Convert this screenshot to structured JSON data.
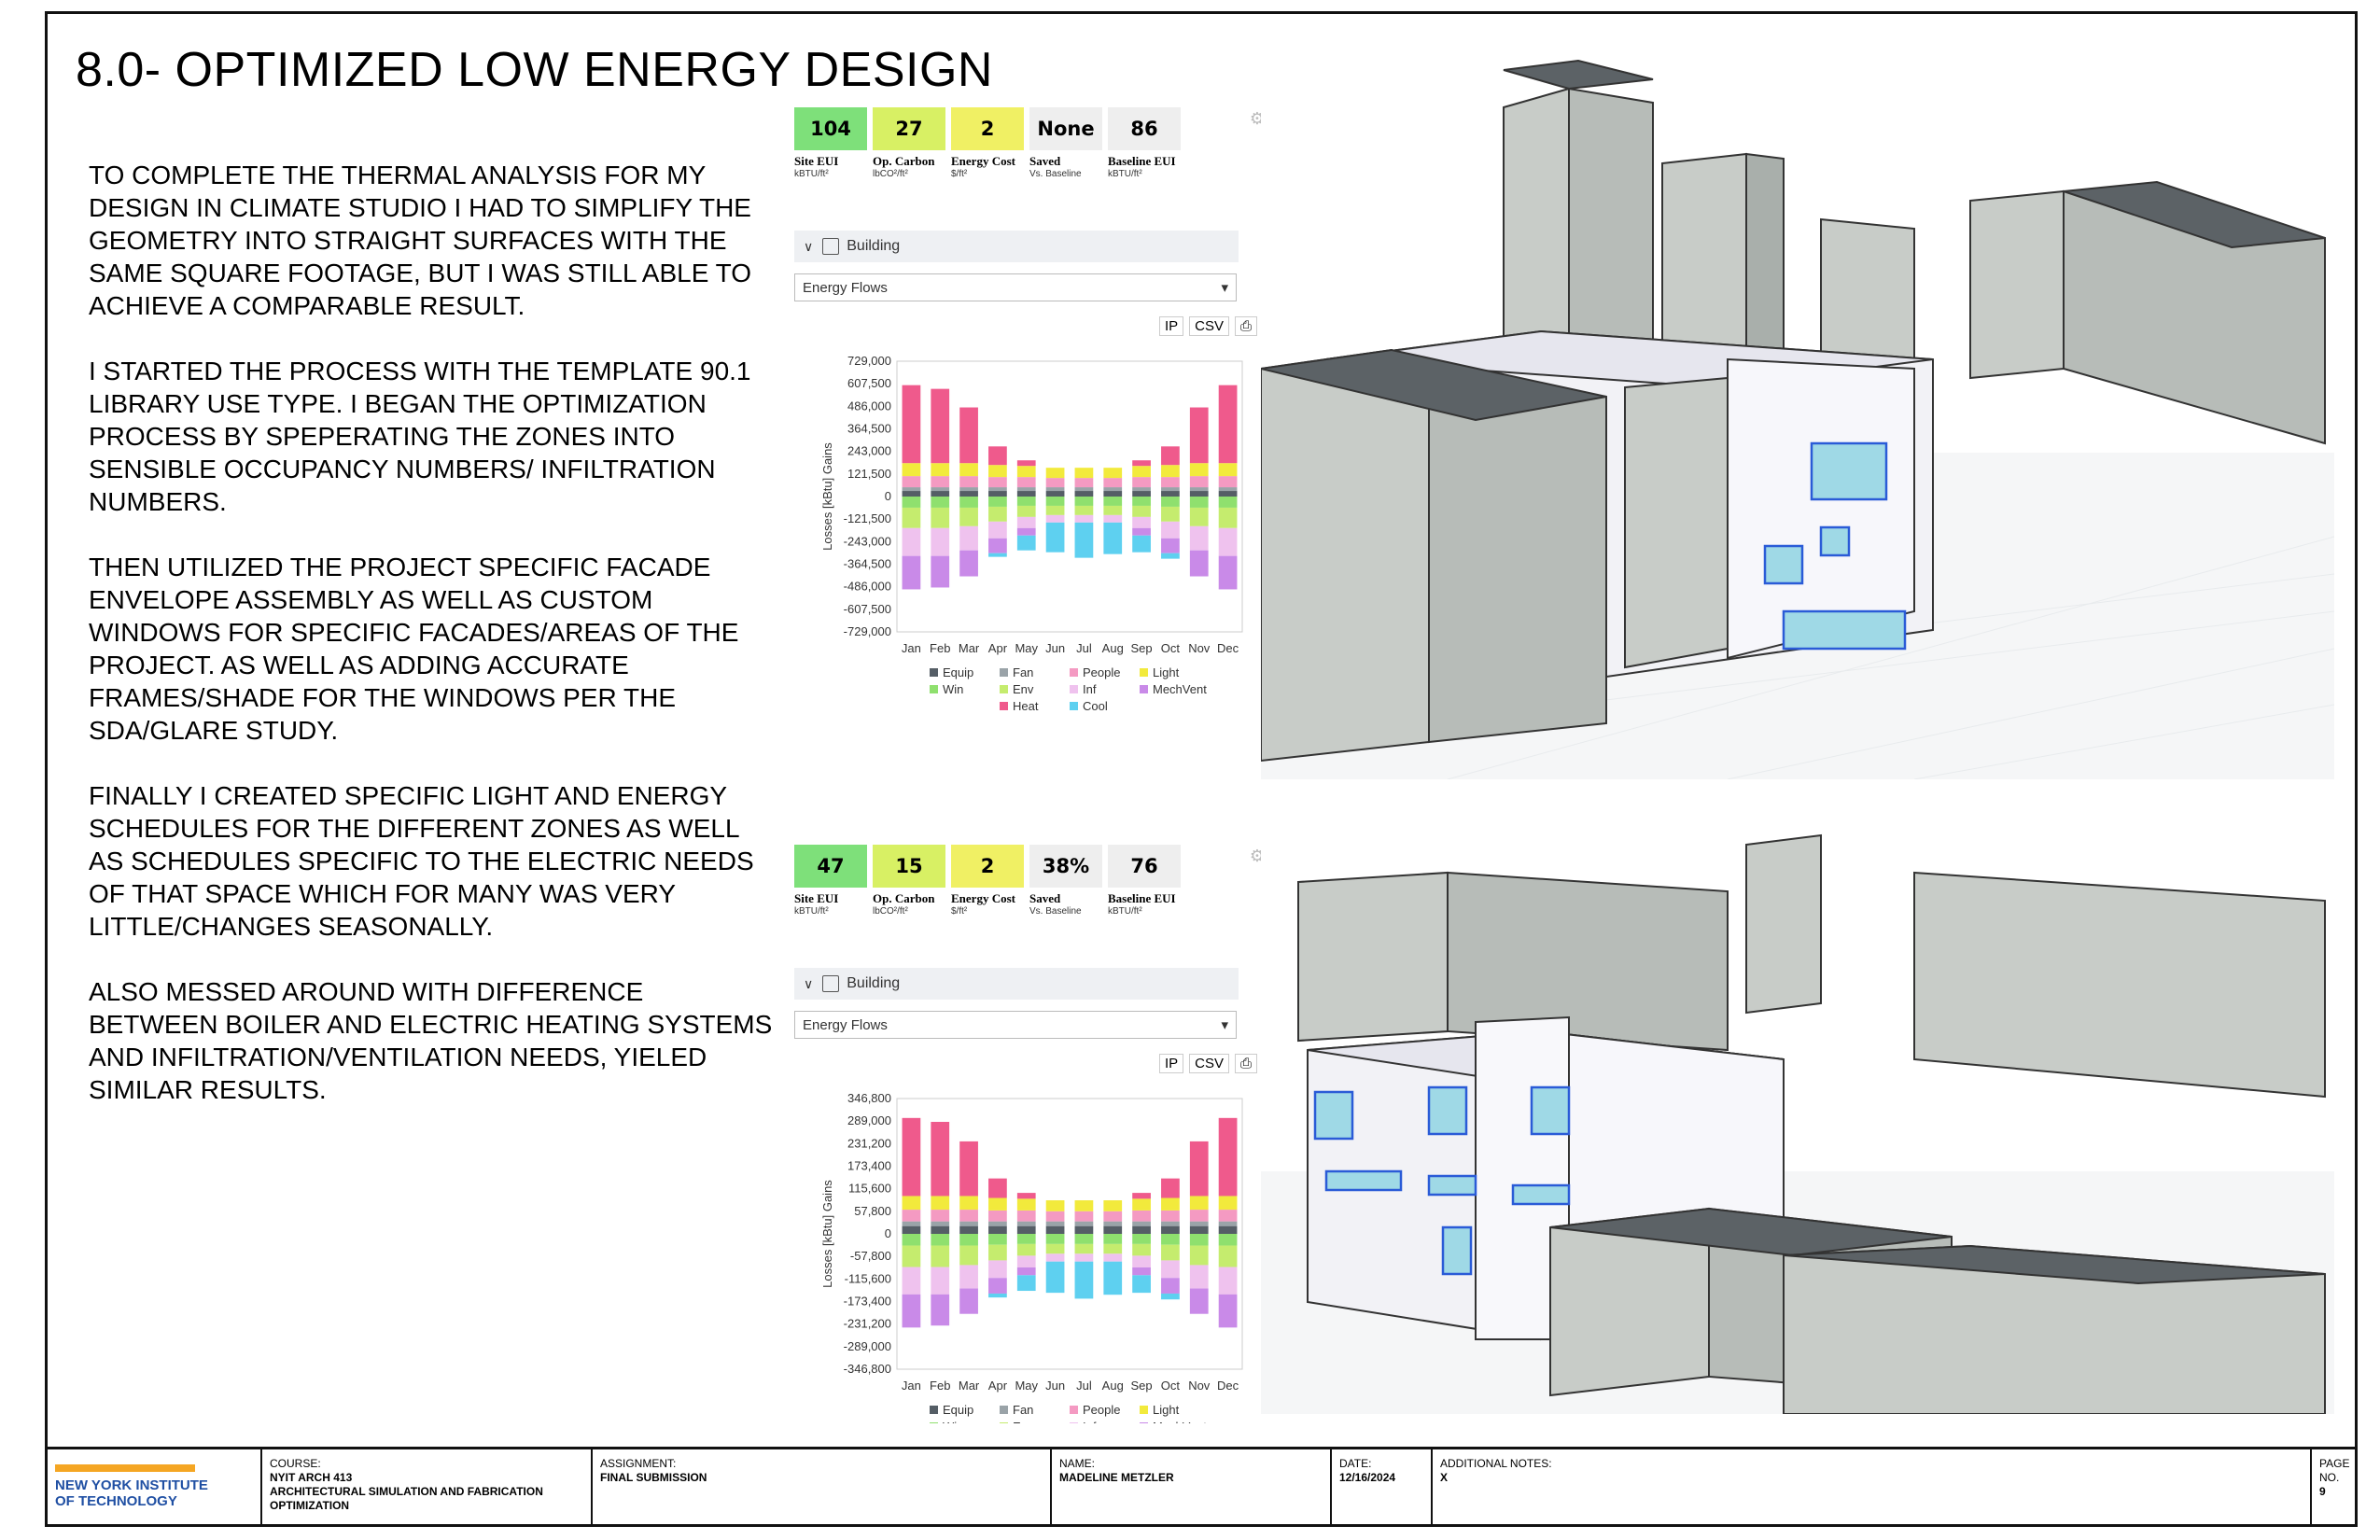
{
  "title": "8.0- OPTIMIZED LOW ENERGY DESIGN",
  "paragraphs": [
    "TO COMPLETE THE THERMAL ANALYSIS FOR MY DESIGN IN CLIMATE STUDIO I HAD TO SIMPLIFY THE GEOMETRY INTO STRAIGHT SURFACES WITH THE SAME SQUARE FOOTAGE, BUT I WAS STILL ABLE TO ACHIEVE A COMPARABLE RESULT.",
    "I STARTED THE PROCESS WITH THE TEMPLATE 90.1 LIBRARY USE TYPE. I BEGAN THE OPTIMIZATION PROCESS BY SPEPERATING THE ZONES INTO SENSIBLE OCCUPANCY NUMBERS/ INFILTRATION NUMBERS.",
    "THEN UTILIZED THE PROJECT SPECIFIC FACADE ENVELOPE ASSEMBLY AS WELL AS CUSTOM WINDOWS FOR SPECIFIC FACADES/AREAS OF THE PROJECT. AS WELL AS ADDING ACCURATE FRAMES/SHADE FOR THE WINDOWS PER THE sDA/GLARE STUDY.",
    "FINALLY I CREATED SPECIFIC LIGHT AND ENERGY SCHEDULES FOR THE DIFFERENT ZONES AS WELL AS SCHEDULES SPECIFIC TO THE ELECTRIC NEEDS OF THAT SPACE WHICH FOR MANY WAS VERY LITTLE/CHANGES SEASONALLY.",
    "ALSO MESSED AROUND WITH DIFFERENCE BETWEEN BOILER AND ELECTRIC HEATING SYSTEMS AND INFILTRATION/VENTILATION NEEDS, YIELED SIMILAR RESULTS."
  ],
  "panels": [
    {
      "kpis": [
        {
          "value": "104",
          "label": "Site EUI",
          "unit": "kBTU/ft²",
          "color": "#7ee07a"
        },
        {
          "value": "27",
          "label": "Op. Carbon",
          "unit": "lbCO²/ft²",
          "color": "#d8f064"
        },
        {
          "value": "2",
          "label": "Energy Cost",
          "unit": "$/ft²",
          "color": "#f0f064"
        },
        {
          "value": "None",
          "label": "Saved",
          "unit": "Vs. Baseline",
          "color": "#eeeeee"
        },
        {
          "value": "86",
          "label": "Baseline EUI",
          "unit": "kBTU/ft²",
          "color": "#eeeeee"
        }
      ],
      "section": "Building",
      "dropdown": "Energy Flows",
      "tools": [
        "IP",
        "CSV"
      ],
      "legend_rows": [
        [
          "Equip",
          "Fan",
          "People",
          "Light"
        ],
        [
          "Win",
          "Env",
          "Inf",
          "MechVent"
        ],
        [
          "Heat",
          "Cool"
        ]
      ]
    },
    {
      "kpis": [
        {
          "value": "47",
          "label": "Site EUI",
          "unit": "kBTU/ft²",
          "color": "#7ee07a"
        },
        {
          "value": "15",
          "label": "Op. Carbon",
          "unit": "lbCO²/ft²",
          "color": "#d8f064"
        },
        {
          "value": "2",
          "label": "Energy Cost",
          "unit": "$/ft²",
          "color": "#f0f064"
        },
        {
          "value": "38%",
          "label": "Saved",
          "unit": "Vs. Baseline",
          "color": "#eeeeee"
        },
        {
          "value": "76",
          "label": "Baseline EUI",
          "unit": "kBTU/ft²",
          "color": "#eeeeee"
        }
      ],
      "section": "Building",
      "dropdown": "Energy Flows",
      "tools": [
        "IP",
        "CSV"
      ],
      "legend_rows": [
        [
          "Equip",
          "Fan",
          "People",
          "Light"
        ],
        [
          "Win",
          "Env",
          "Inf",
          "MechVent"
        ]
      ]
    }
  ],
  "chart_data": [
    {
      "type": "bar",
      "stacked": true,
      "ylabel": "Losses [kBtu] Gains",
      "categories": [
        "Jan",
        "Feb",
        "Mar",
        "Apr",
        "May",
        "Jun",
        "Jul",
        "Aug",
        "Sep",
        "Oct",
        "Nov",
        "Dec"
      ],
      "yticks": [
        "729,000",
        "607,500",
        "486,000",
        "364,500",
        "243,000",
        "121,500",
        "0",
        "-121,500",
        "-243,000",
        "-364,500",
        "-486,000",
        "-607,500",
        "-729,000"
      ],
      "ylim": [
        -729000,
        729000
      ],
      "series": [
        {
          "name": "Equip",
          "values": [
            30000,
            30000,
            30000,
            30000,
            30000,
            30000,
            30000,
            30000,
            30000,
            30000,
            30000,
            30000
          ]
        },
        {
          "name": "Fan",
          "values": [
            20000,
            20000,
            20000,
            20000,
            20000,
            20000,
            20000,
            20000,
            20000,
            20000,
            20000,
            20000
          ]
        },
        {
          "name": "People",
          "values": [
            60000,
            60000,
            60000,
            55000,
            55000,
            50000,
            50000,
            50000,
            55000,
            55000,
            60000,
            60000
          ]
        },
        {
          "name": "Light",
          "values": [
            70000,
            70000,
            70000,
            65000,
            60000,
            55000,
            55000,
            55000,
            60000,
            65000,
            70000,
            70000
          ]
        },
        {
          "name": "Win",
          "values": [
            -60000,
            -60000,
            -60000,
            -55000,
            -50000,
            -50000,
            -50000,
            -50000,
            -50000,
            -55000,
            -60000,
            -60000
          ]
        },
        {
          "name": "Env",
          "values": [
            -110000,
            -110000,
            -100000,
            -80000,
            -60000,
            -50000,
            -50000,
            -50000,
            -60000,
            -80000,
            -100000,
            -110000
          ]
        },
        {
          "name": "Inf",
          "values": [
            -150000,
            -150000,
            -130000,
            -90000,
            -60000,
            -40000,
            -40000,
            -40000,
            -60000,
            -90000,
            -130000,
            -150000
          ]
        },
        {
          "name": "MechVent",
          "values": [
            -180000,
            -170000,
            -140000,
            -80000,
            -40000,
            0,
            0,
            0,
            -40000,
            -80000,
            -140000,
            -180000
          ]
        },
        {
          "name": "Heat",
          "values": [
            420000,
            400000,
            300000,
            100000,
            30000,
            0,
            0,
            0,
            30000,
            100000,
            300000,
            420000
          ]
        },
        {
          "name": "Cool",
          "values": [
            0,
            0,
            0,
            -20000,
            -80000,
            -160000,
            -190000,
            -170000,
            -90000,
            -30000,
            0,
            0
          ]
        }
      ]
    },
    {
      "type": "bar",
      "stacked": true,
      "ylabel": "Losses [kBtu] Gains",
      "categories": [
        "Jan",
        "Feb",
        "Mar",
        "Apr",
        "May",
        "Jun",
        "Jul",
        "Aug",
        "Sep",
        "Oct",
        "Nov",
        "Dec"
      ],
      "yticks": [
        "346,800",
        "289,000",
        "231,200",
        "173,400",
        "115,600",
        "57,800",
        "0",
        "-57,800",
        "-115,600",
        "-173,400",
        "-231,200",
        "-289,000",
        "-346,800"
      ],
      "ylim": [
        -346800,
        346800
      ],
      "series": [
        {
          "name": "Equip",
          "values": [
            20000,
            20000,
            20000,
            20000,
            20000,
            20000,
            20000,
            20000,
            20000,
            20000,
            20000,
            20000
          ]
        },
        {
          "name": "Fan",
          "values": [
            12000,
            12000,
            12000,
            12000,
            12000,
            12000,
            12000,
            12000,
            12000,
            12000,
            12000,
            12000
          ]
        },
        {
          "name": "People",
          "values": [
            30000,
            30000,
            30000,
            28000,
            28000,
            26000,
            26000,
            26000,
            28000,
            28000,
            30000,
            30000
          ]
        },
        {
          "name": "Light",
          "values": [
            35000,
            35000,
            35000,
            32000,
            30000,
            28000,
            28000,
            28000,
            30000,
            32000,
            35000,
            35000
          ]
        },
        {
          "name": "Win",
          "values": [
            -30000,
            -30000,
            -30000,
            -28000,
            -26000,
            -26000,
            -26000,
            -26000,
            -26000,
            -28000,
            -30000,
            -30000
          ]
        },
        {
          "name": "Env",
          "values": [
            -55000,
            -55000,
            -50000,
            -40000,
            -30000,
            -25000,
            -25000,
            -25000,
            -30000,
            -40000,
            -50000,
            -55000
          ]
        },
        {
          "name": "Inf",
          "values": [
            -70000,
            -70000,
            -60000,
            -45000,
            -30000,
            -20000,
            -20000,
            -20000,
            -30000,
            -45000,
            -60000,
            -70000
          ]
        },
        {
          "name": "MechVent",
          "values": [
            -85000,
            -80000,
            -65000,
            -40000,
            -20000,
            0,
            0,
            0,
            -20000,
            -40000,
            -65000,
            -85000
          ]
        },
        {
          "name": "Heat",
          "values": [
            200000,
            190000,
            140000,
            50000,
            15000,
            0,
            0,
            0,
            15000,
            50000,
            140000,
            200000
          ]
        },
        {
          "name": "Cool",
          "values": [
            0,
            0,
            0,
            -10000,
            -40000,
            -80000,
            -95000,
            -85000,
            -45000,
            -15000,
            0,
            0
          ]
        }
      ]
    }
  ],
  "colors": {
    "Equip": "#555e66",
    "Fan": "#9aa3a8",
    "People": "#f49ac2",
    "Light": "#f2ea3c",
    "Win": "#8fe06e",
    "Env": "#c5ec6e",
    "Inf": "#efc2ee",
    "MechVent": "#c98ae8",
    "Heat": "#ef5a8c",
    "Cool": "#5ed0f0"
  },
  "footer": {
    "logo_line1": "NEW YORK INSTITUTE",
    "logo_line2": "OF TECHNOLOGY",
    "course_label": "COURSE:",
    "course_code": "NYIT ARCH 413",
    "course_name": "ARCHITECTURAL SIMULATION AND FABRICATION OPTIMIZATION",
    "assignment_label": "ASSIGNMENT:",
    "assignment": "FINAL SUBMISSION",
    "name_label": "NAME:",
    "name": "MADELINE METZLER",
    "date_label": "DATE:",
    "date": "12/16/2024",
    "notes_label": "ADDITIONAL NOTES:",
    "notes": "X",
    "page_label_1": "PAGE",
    "page_label_2": "NO.",
    "page": "9"
  }
}
